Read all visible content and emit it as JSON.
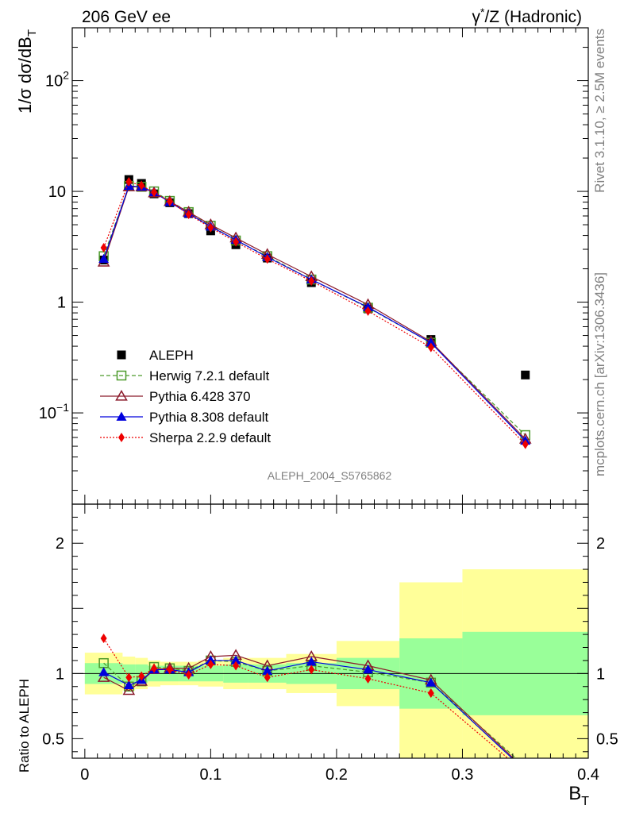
{
  "header": {
    "left": "206 GeV ee",
    "right_prefix": "γ",
    "right_sup": "*",
    "right_rest": "/Z (Hadronic)"
  },
  "side_labels": {
    "rivet": "Rivet 3.1.10, ≥ 2.5M events",
    "mcplots": "mcplots.cern.ch [arXiv:1306.3436]"
  },
  "analysis_id": "ALEPH_2004_S5765862",
  "colors": {
    "data": "#000000",
    "herwig": "#4c9a2a",
    "pythia6": "#8b1a2b",
    "pythia8": "#0000dd",
    "sherpa": "#ee0000",
    "band_inner": "#99ff99",
    "band_outer": "#ffff99"
  },
  "chart_data": [
    {
      "type": "line",
      "panel": "main",
      "ylabel": "1/σ dσ/dB_T",
      "ylabel_parts": {
        "pre": "1/σ  dσ/dB",
        "sub": "T"
      },
      "yscale": "log",
      "ylim": [
        0.015,
        300
      ],
      "xlim": [
        -0.01,
        0.4
      ],
      "yticks": [
        {
          "value": 100,
          "base": "10",
          "exp": "2"
        },
        {
          "value": 10,
          "base": "10",
          "exp": ""
        },
        {
          "value": 1,
          "base": "1",
          "exp": ""
        },
        {
          "value": 0.1,
          "base": "10",
          "exp": "−1"
        }
      ],
      "legend_position": "center-left",
      "x": [
        0.015,
        0.035,
        0.045,
        0.055,
        0.0675,
        0.0825,
        0.1,
        0.12,
        0.145,
        0.18,
        0.225,
        0.275,
        0.35
      ],
      "series": [
        {
          "name": "ALEPH",
          "key": "data",
          "marker": "square-filled",
          "style": "none",
          "values": [
            2.4,
            12.8,
            11.8,
            9.5,
            7.9,
            6.3,
            4.4,
            3.3,
            2.5,
            1.5,
            0.87,
            0.46,
            0.22
          ]
        },
        {
          "name": "Herwig 7.2.1 default",
          "key": "herwig",
          "marker": "square-open",
          "style": "dashed",
          "values": [
            2.6,
            11.2,
            11.0,
            10.0,
            8.2,
            6.5,
            4.9,
            3.6,
            2.6,
            1.6,
            0.89,
            0.43,
            0.063
          ]
        },
        {
          "name": "Pythia 6.428 370",
          "key": "pythia6",
          "marker": "triangle-open",
          "style": "solid",
          "values": [
            2.3,
            11.0,
            11.0,
            9.7,
            8.1,
            6.5,
            5.0,
            3.8,
            2.7,
            1.7,
            0.95,
            0.44,
            0.058
          ]
        },
        {
          "name": "Pythia 8.308 default",
          "key": "pythia8",
          "marker": "triangle-filled",
          "style": "solid",
          "values": [
            2.45,
            11.2,
            11.0,
            9.8,
            8.0,
            6.3,
            4.8,
            3.65,
            2.55,
            1.6,
            0.9,
            0.43,
            0.056
          ]
        },
        {
          "name": "Sherpa 2.2.9 default",
          "key": "sherpa",
          "marker": "diamond-filled",
          "style": "dotted",
          "values": [
            3.1,
            12.2,
            11.3,
            9.8,
            8.1,
            6.2,
            4.7,
            3.5,
            2.45,
            1.55,
            0.83,
            0.39,
            0.052
          ]
        }
      ]
    },
    {
      "type": "line",
      "panel": "ratio",
      "ylabel": "Ratio to ALEPH",
      "xlabel": "B_T",
      "xlabel_parts": {
        "pre": "B",
        "sub": "T"
      },
      "ylim": [
        0.35,
        2.3
      ],
      "xlim": [
        -0.01,
        0.4
      ],
      "yticks": [
        0.5,
        1,
        2
      ],
      "ytick_labels": [
        "0.5",
        "1",
        "2"
      ],
      "xticks": [
        0,
        0.1,
        0.2,
        0.3,
        0.4
      ],
      "xtick_labels": [
        "0",
        "0.1",
        "0.2",
        "0.3",
        "0.4"
      ],
      "x": [
        0.015,
        0.035,
        0.045,
        0.055,
        0.0675,
        0.0825,
        0.1,
        0.12,
        0.145,
        0.18,
        0.225,
        0.275,
        0.35
      ],
      "bands": [
        {
          "x0": 0.0,
          "x1": 0.03,
          "inner": [
            0.92,
            1.08
          ],
          "outer": [
            0.84,
            1.16
          ]
        },
        {
          "x0": 0.03,
          "x1": 0.04,
          "inner": [
            0.93,
            1.07
          ],
          "outer": [
            0.87,
            1.13
          ]
        },
        {
          "x0": 0.04,
          "x1": 0.05,
          "inner": [
            0.93,
            1.07
          ],
          "outer": [
            0.88,
            1.12
          ]
        },
        {
          "x0": 0.05,
          "x1": 0.06,
          "inner": [
            0.94,
            1.06
          ],
          "outer": [
            0.9,
            1.1
          ]
        },
        {
          "x0": 0.06,
          "x1": 0.075,
          "inner": [
            0.94,
            1.06
          ],
          "outer": [
            0.91,
            1.09
          ]
        },
        {
          "x0": 0.075,
          "x1": 0.09,
          "inner": [
            0.94,
            1.06
          ],
          "outer": [
            0.91,
            1.09
          ]
        },
        {
          "x0": 0.09,
          "x1": 0.11,
          "inner": [
            0.94,
            1.06
          ],
          "outer": [
            0.9,
            1.1
          ]
        },
        {
          "x0": 0.11,
          "x1": 0.13,
          "inner": [
            0.93,
            1.07
          ],
          "outer": [
            0.88,
            1.12
          ]
        },
        {
          "x0": 0.13,
          "x1": 0.16,
          "inner": [
            0.93,
            1.07
          ],
          "outer": [
            0.88,
            1.12
          ]
        },
        {
          "x0": 0.16,
          "x1": 0.2,
          "inner": [
            0.92,
            1.08
          ],
          "outer": [
            0.85,
            1.15
          ]
        },
        {
          "x0": 0.2,
          "x1": 0.25,
          "inner": [
            0.88,
            1.12
          ],
          "outer": [
            0.75,
            1.25
          ]
        },
        {
          "x0": 0.25,
          "x1": 0.3,
          "inner": [
            0.73,
            1.27
          ],
          "outer": [
            0.3,
            1.7
          ]
        },
        {
          "x0": 0.3,
          "x1": 0.4,
          "inner": [
            0.68,
            1.32
          ],
          "outer": [
            0.3,
            1.8
          ]
        }
      ],
      "series": [
        {
          "name": "Herwig 7.2.1 default",
          "key": "herwig",
          "marker": "square-open",
          "style": "dashed",
          "values": [
            1.08,
            0.9,
            0.94,
            1.05,
            1.04,
            1.02,
            1.1,
            1.09,
            1.02,
            1.06,
            1.01,
            0.93,
            0.286
          ]
        },
        {
          "name": "Pythia 6.428 370",
          "key": "pythia6",
          "marker": "triangle-open",
          "style": "solid",
          "values": [
            0.97,
            0.87,
            0.94,
            1.03,
            1.04,
            1.04,
            1.13,
            1.14,
            1.06,
            1.13,
            1.06,
            0.95,
            0.264
          ]
        },
        {
          "name": "Pythia 8.308 default",
          "key": "pythia8",
          "marker": "triangle-filled",
          "style": "solid",
          "values": [
            1.01,
            0.91,
            0.95,
            1.03,
            1.03,
            1.01,
            1.1,
            1.1,
            1.02,
            1.09,
            1.03,
            0.93,
            0.255
          ]
        },
        {
          "name": "Sherpa 2.2.9 default",
          "key": "sherpa",
          "marker": "diamond-filled",
          "style": "dotted",
          "values": [
            1.27,
            0.97,
            0.98,
            1.04,
            1.03,
            0.99,
            1.07,
            1.06,
            0.97,
            1.03,
            0.96,
            0.85,
            0.236
          ]
        }
      ]
    }
  ]
}
